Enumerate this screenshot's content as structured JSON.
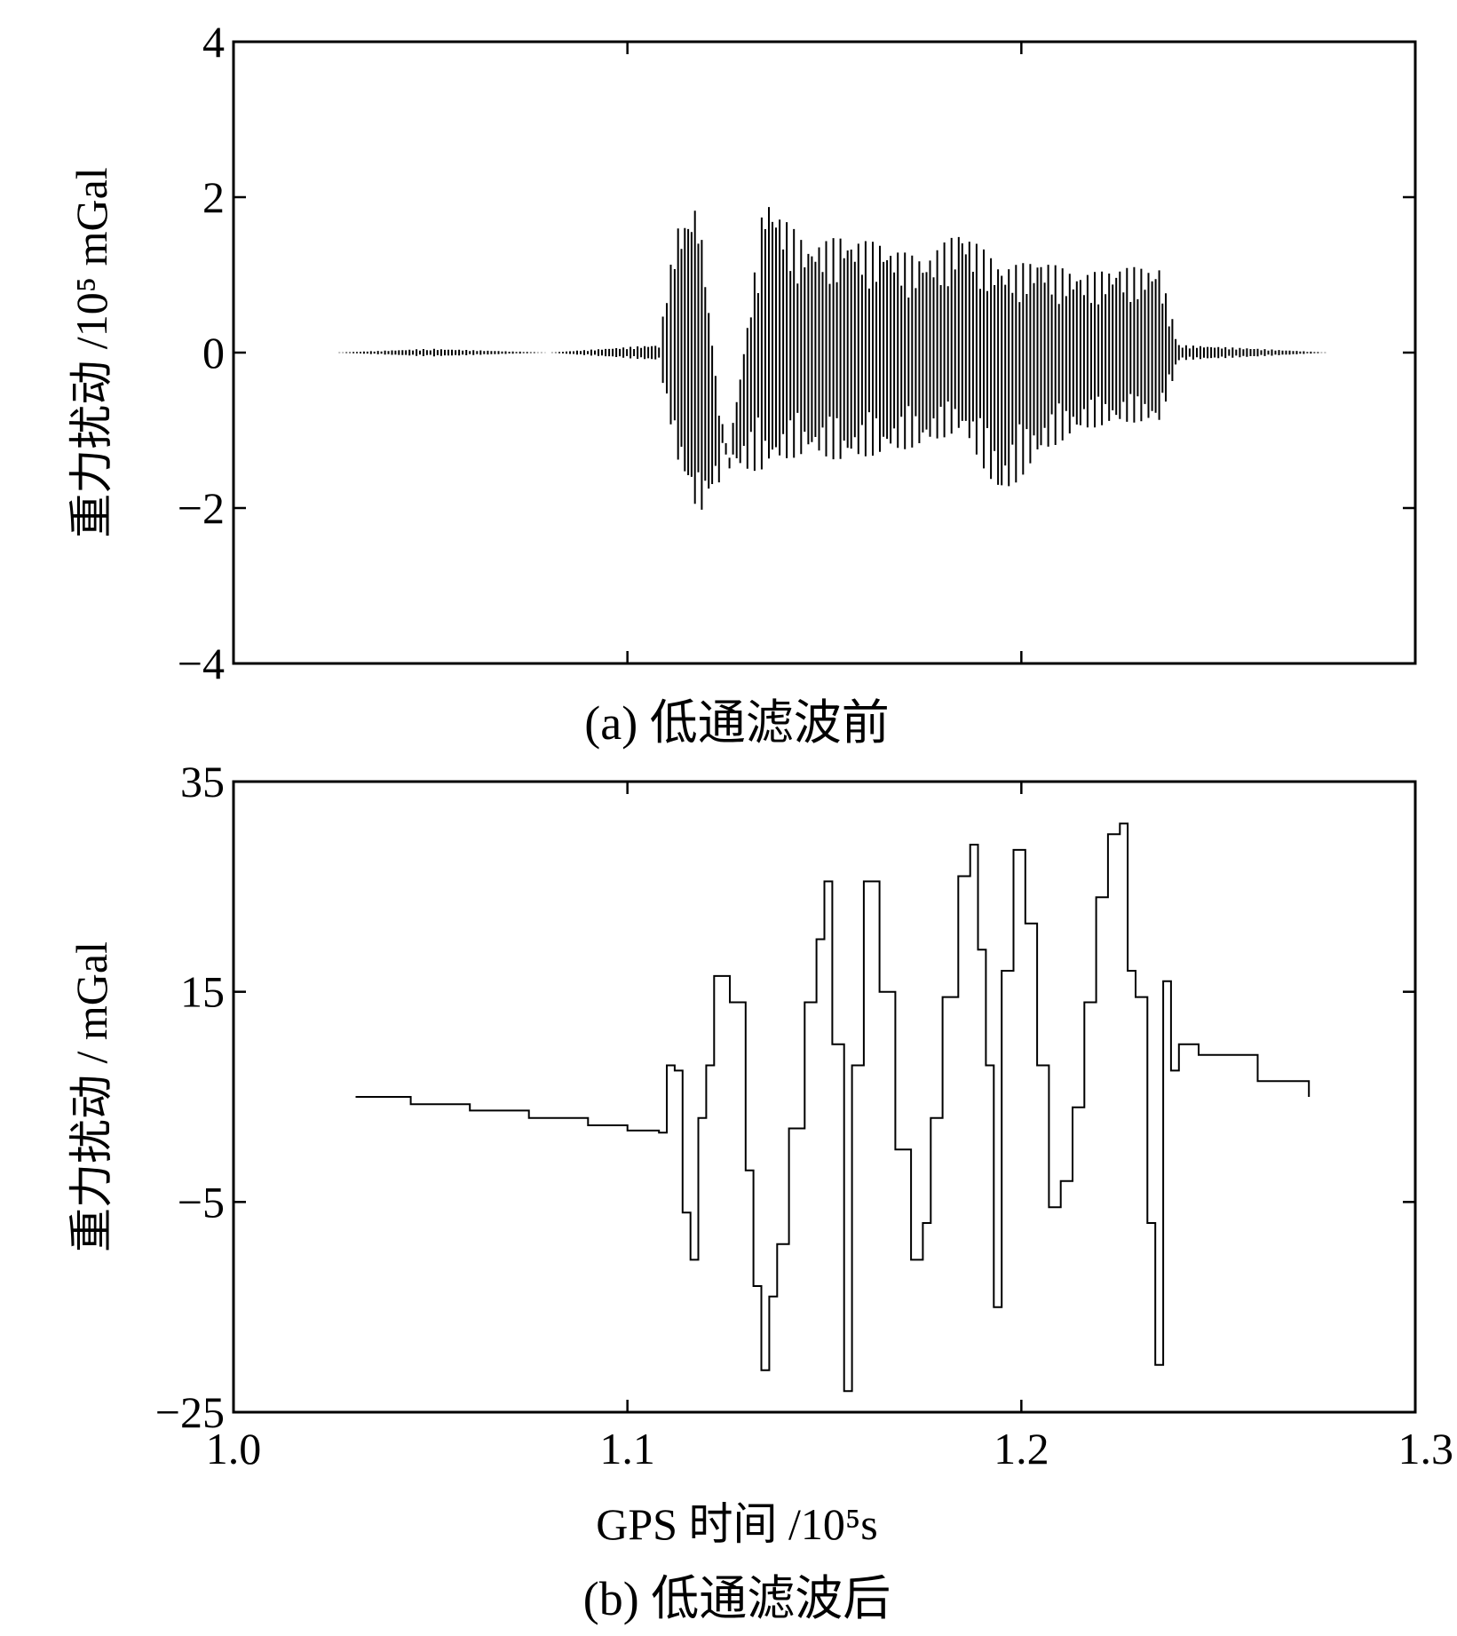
{
  "chart_data": [
    {
      "type": "line",
      "caption": "(a) 低通滤波前",
      "ylabel": "重力扰动 /10⁵ mGal",
      "ylim": [
        -4,
        4
      ],
      "yticks": [
        -4,
        -2,
        0,
        2,
        4
      ],
      "ytick_labels": [
        "−4",
        "−2",
        "0",
        "2",
        "4"
      ],
      "xlim": [
        1.0,
        1.3
      ],
      "xticks": [
        1.0,
        1.1,
        1.2,
        1.3
      ],
      "xtick_labels": [],
      "series": [
        {
          "x": [
            1.026,
            1.05,
            1.08,
            1.108,
            1.112,
            1.118,
            1.125,
            1.135,
            1.145,
            1.155,
            1.165,
            1.175,
            1.185,
            1.195,
            1.205,
            1.215,
            1.225,
            1.235,
            1.24,
            1.26,
            1.278
          ],
          "y": [
            0.0,
            0.05,
            0.0,
            0.1,
            1.6,
            2.0,
            -1.8,
            2.1,
            1.4,
            1.5,
            1.4,
            1.2,
            1.6,
            1.1,
            1.2,
            1.0,
            1.1,
            1.1,
            0.1,
            0.05,
            0.0
          ],
          "y_min": [
            0.0,
            -0.05,
            0.0,
            -0.1,
            -1.3,
            -2.2,
            -1.6,
            -1.5,
            -1.3,
            -1.4,
            -1.3,
            -1.2,
            -1.0,
            -1.9,
            -1.3,
            -1.0,
            -0.9,
            -0.9,
            -0.1,
            -0.05,
            0.0
          ]
        }
      ]
    },
    {
      "type": "line",
      "caption": "(b) 低通滤波后",
      "ylabel": "重力扰动 / mGal",
      "xlabel": "GPS 时间 /10⁵s",
      "ylim": [
        -25,
        35
      ],
      "yticks": [
        -25,
        -5,
        15,
        35
      ],
      "ytick_labels": [
        "−25",
        "−5",
        "15",
        "35"
      ],
      "xlim": [
        1.0,
        1.3
      ],
      "xticks": [
        1.0,
        1.1,
        1.2,
        1.3
      ],
      "xtick_labels": [
        "1.0",
        "1.1",
        "1.2",
        "1.3"
      ],
      "series": [
        {
          "x": [
            1.031,
            1.045,
            1.06,
            1.075,
            1.09,
            1.1,
            1.108,
            1.11,
            1.112,
            1.114,
            1.116,
            1.118,
            1.12,
            1.122,
            1.126,
            1.13,
            1.132,
            1.134,
            1.136,
            1.138,
            1.141,
            1.145,
            1.148,
            1.15,
            1.152,
            1.155,
            1.157,
            1.16,
            1.164,
            1.168,
            1.172,
            1.175,
            1.177,
            1.18,
            1.184,
            1.187,
            1.189,
            1.191,
            1.193,
            1.195,
            1.198,
            1.201,
            1.204,
            1.207,
            1.21,
            1.213,
            1.216,
            1.219,
            1.222,
            1.225,
            1.227,
            1.229,
            1.232,
            1.234,
            1.236,
            1.238,
            1.24,
            1.245,
            1.26,
            1.273
          ],
          "y": [
            5.0,
            4.3,
            3.7,
            3.0,
            2.3,
            1.8,
            1.6,
            8.0,
            7.5,
            -6.0,
            -10.5,
            3.0,
            8.0,
            16.5,
            14.0,
            -2.0,
            -13.0,
            -21.0,
            -14.0,
            -9.0,
            2.0,
            14.0,
            20.0,
            25.5,
            10.0,
            -23.0,
            8.0,
            25.5,
            15.0,
            0.0,
            -10.5,
            -7.0,
            3.0,
            14.5,
            26.0,
            29.0,
            19.0,
            8.0,
            -15.0,
            17.0,
            28.5,
            21.5,
            8.0,
            -5.5,
            -3.0,
            4.0,
            14.0,
            24.0,
            30.0,
            31.0,
            17.0,
            14.5,
            -7.0,
            -20.5,
            16.0,
            7.5,
            10.0,
            9.0,
            6.5,
            5.0
          ]
        }
      ]
    }
  ]
}
